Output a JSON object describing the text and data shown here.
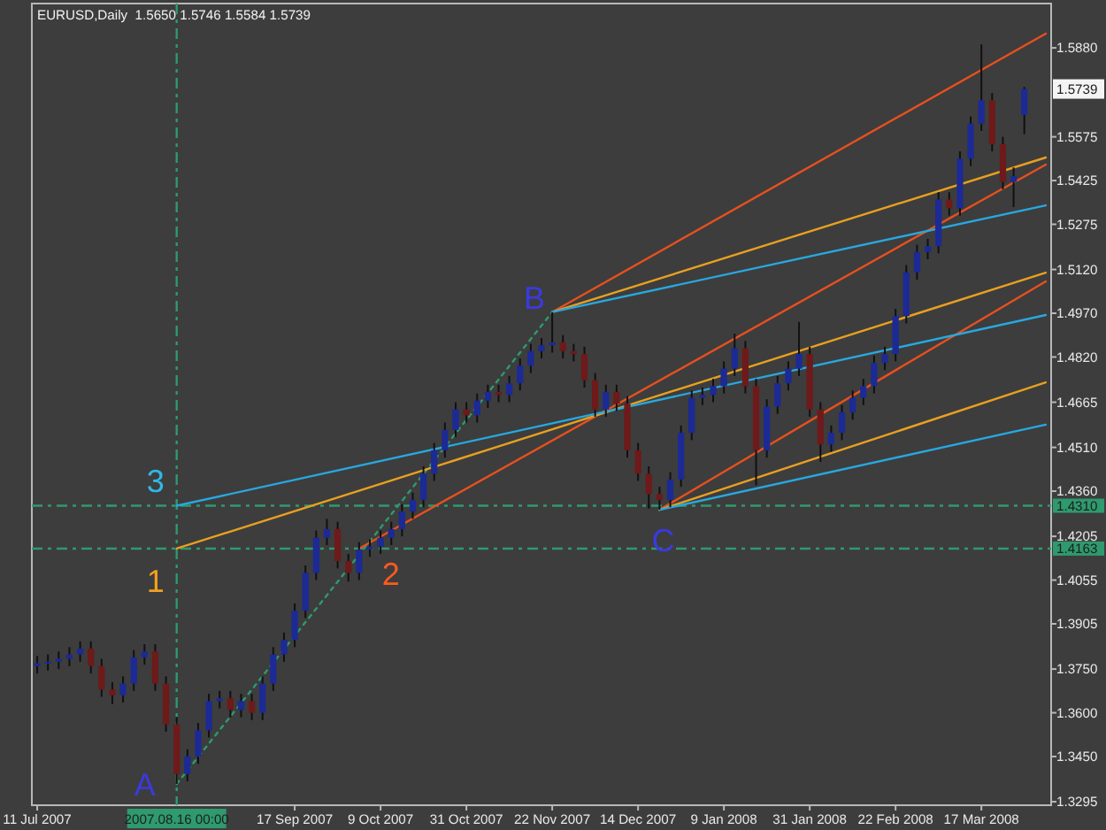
{
  "chart_data": {
    "type": "candlestick",
    "title": "EURUSD,Daily  1.5650 1.5746 1.5584 1.5739",
    "categories": [
      "11 Jul 2007",
      null,
      null,
      null,
      null,
      null,
      null,
      null,
      null,
      null,
      null,
      null,
      null,
      "2007.08.16 00:00",
      null,
      null,
      null,
      null,
      null,
      null,
      null,
      null,
      null,
      null,
      "17 Sep 2007",
      null,
      null,
      null,
      null,
      null,
      null,
      null,
      "9 Oct 2007",
      null,
      null,
      null,
      null,
      null,
      null,
      null,
      "31 Oct 2007",
      null,
      null,
      null,
      null,
      null,
      null,
      null,
      "22 Nov 2007",
      null,
      null,
      null,
      null,
      null,
      null,
      null,
      "14 Dec 2007",
      null,
      null,
      null,
      null,
      null,
      null,
      null,
      "9 Jan 2008",
      null,
      null,
      null,
      null,
      null,
      null,
      null,
      "31 Jan 2008",
      null,
      null,
      null,
      null,
      null,
      null,
      null,
      "22 Feb 2008",
      null,
      null,
      null,
      null,
      null,
      null,
      null,
      "17 Mar 2008",
      null,
      null,
      null,
      null,
      null,
      null
    ],
    "ohlc": [
      [
        1.376,
        1.3795,
        1.3735,
        1.377
      ],
      [
        1.377,
        1.38,
        1.3745,
        1.3775
      ],
      [
        1.3775,
        1.381,
        1.375,
        1.3785
      ],
      [
        1.3785,
        1.3825,
        1.376,
        1.38
      ],
      [
        1.38,
        1.3845,
        1.3775,
        1.382
      ],
      [
        1.382,
        1.3845,
        1.3735,
        1.376
      ],
      [
        1.376,
        1.3785,
        1.3655,
        1.368
      ],
      [
        1.368,
        1.3705,
        1.363,
        1.366
      ],
      [
        1.366,
        1.3725,
        1.3635,
        1.37
      ],
      [
        1.37,
        1.3815,
        1.3675,
        1.379
      ],
      [
        1.379,
        1.3835,
        1.3765,
        1.381
      ],
      [
        1.381,
        1.3835,
        1.3675,
        1.37
      ],
      [
        1.37,
        1.3725,
        1.3535,
        1.356
      ],
      [
        1.356,
        1.3585,
        1.3356,
        1.339
      ],
      [
        1.339,
        1.3475,
        1.3365,
        1.345
      ],
      [
        1.345,
        1.3565,
        1.3425,
        1.354
      ],
      [
        1.354,
        1.3665,
        1.3515,
        1.364
      ],
      [
        1.364,
        1.3675,
        1.3615,
        1.365
      ],
      [
        1.365,
        1.3675,
        1.3585,
        1.361
      ],
      [
        1.361,
        1.3665,
        1.3585,
        1.364
      ],
      [
        1.364,
        1.3665,
        1.3575,
        1.36
      ],
      [
        1.36,
        1.3725,
        1.3575,
        1.37
      ],
      [
        1.37,
        1.3825,
        1.3675,
        1.38
      ],
      [
        1.38,
        1.3875,
        1.3775,
        1.385
      ],
      [
        1.385,
        1.3975,
        1.3825,
        1.395
      ],
      [
        1.395,
        1.4105,
        1.3925,
        1.408
      ],
      [
        1.408,
        1.4225,
        1.4055,
        1.42
      ],
      [
        1.42,
        1.4265,
        1.4175,
        1.423
      ],
      [
        1.423,
        1.4255,
        1.4095,
        1.412
      ],
      [
        1.412,
        1.4145,
        1.405,
        1.408
      ],
      [
        1.408,
        1.4185,
        1.4055,
        1.416
      ],
      [
        1.416,
        1.4195,
        1.4135,
        1.417
      ],
      [
        1.417,
        1.4225,
        1.4145,
        1.42
      ],
      [
        1.42,
        1.4255,
        1.4175,
        1.423
      ],
      [
        1.423,
        1.4315,
        1.4205,
        1.429
      ],
      [
        1.429,
        1.4355,
        1.4265,
        1.433
      ],
      [
        1.433,
        1.4445,
        1.4305,
        1.442
      ],
      [
        1.442,
        1.4525,
        1.4395,
        1.45
      ],
      [
        1.45,
        1.4595,
        1.4475,
        1.457
      ],
      [
        1.457,
        1.4665,
        1.4545,
        1.464
      ],
      [
        1.464,
        1.4665,
        1.4595,
        1.462
      ],
      [
        1.462,
        1.4695,
        1.4595,
        1.467
      ],
      [
        1.467,
        1.4725,
        1.4645,
        1.47
      ],
      [
        1.47,
        1.4725,
        1.4665,
        1.469
      ],
      [
        1.469,
        1.4755,
        1.4665,
        1.473
      ],
      [
        1.473,
        1.4815,
        1.4705,
        1.479
      ],
      [
        1.479,
        1.4865,
        1.4765,
        1.484
      ],
      [
        1.484,
        1.4885,
        1.4815,
        1.486
      ],
      [
        1.486,
        1.4974,
        1.4835,
        1.487
      ],
      [
        1.487,
        1.4895,
        1.4815,
        1.484
      ],
      [
        1.484,
        1.4865,
        1.4805,
        1.483
      ],
      [
        1.483,
        1.4855,
        1.4715,
        1.474
      ],
      [
        1.474,
        1.4765,
        1.4615,
        1.464
      ],
      [
        1.464,
        1.4725,
        1.4615,
        1.47
      ],
      [
        1.47,
        1.4725,
        1.4635,
        1.466
      ],
      [
        1.466,
        1.4685,
        1.4475,
        1.45
      ],
      [
        1.45,
        1.4525,
        1.4395,
        1.442
      ],
      [
        1.442,
        1.4445,
        1.43,
        1.435
      ],
      [
        1.435,
        1.4375,
        1.4296,
        1.433
      ],
      [
        1.433,
        1.4425,
        1.4305,
        1.44
      ],
      [
        1.44,
        1.4585,
        1.4375,
        1.456
      ],
      [
        1.456,
        1.4705,
        1.4535,
        1.468
      ],
      [
        1.468,
        1.4715,
        1.4655,
        1.469
      ],
      [
        1.469,
        1.4745,
        1.4665,
        1.472
      ],
      [
        1.472,
        1.4805,
        1.4695,
        1.478
      ],
      [
        1.478,
        1.49,
        1.4755,
        1.485
      ],
      [
        1.485,
        1.4875,
        1.4695,
        1.472
      ],
      [
        1.472,
        1.4745,
        1.438,
        1.45
      ],
      [
        1.45,
        1.4675,
        1.4475,
        1.465
      ],
      [
        1.465,
        1.4755,
        1.4625,
        1.473
      ],
      [
        1.473,
        1.4805,
        1.4705,
        1.478
      ],
      [
        1.478,
        1.494,
        1.4755,
        1.483
      ],
      [
        1.483,
        1.4855,
        1.4615,
        1.464
      ],
      [
        1.464,
        1.4665,
        1.446,
        1.452
      ],
      [
        1.452,
        1.4585,
        1.4495,
        1.456
      ],
      [
        1.456,
        1.4655,
        1.4535,
        1.463
      ],
      [
        1.463,
        1.4705,
        1.4605,
        1.468
      ],
      [
        1.468,
        1.4745,
        1.4655,
        1.472
      ],
      [
        1.472,
        1.4825,
        1.4695,
        1.48
      ],
      [
        1.48,
        1.4855,
        1.4775,
        1.483
      ],
      [
        1.483,
        1.4985,
        1.4805,
        1.496
      ],
      [
        1.496,
        1.5135,
        1.4935,
        1.511
      ],
      [
        1.511,
        1.5205,
        1.5085,
        1.518
      ],
      [
        1.518,
        1.5225,
        1.5155,
        1.52
      ],
      [
        1.52,
        1.5385,
        1.5175,
        1.536
      ],
      [
        1.536,
        1.5385,
        1.5305,
        1.533
      ],
      [
        1.533,
        1.5525,
        1.5305,
        1.55
      ],
      [
        1.55,
        1.5645,
        1.5475,
        1.562
      ],
      [
        1.562,
        1.5892,
        1.5595,
        1.57
      ],
      [
        1.57,
        1.5725,
        1.5525,
        1.555
      ],
      [
        1.555,
        1.5575,
        1.5395,
        1.542
      ],
      [
        1.542,
        1.547,
        1.5334,
        1.544
      ],
      [
        1.565,
        1.5746,
        1.5584,
        1.5739
      ],
      null,
      null
    ],
    "colors": [
      "#1c2a96",
      "#1c2a96",
      "#1c2a96",
      "#1c2a96",
      "#1c2a96",
      "#6e1a1a",
      "#6e1a1a",
      "#6e1a1a",
      "#1c2a96",
      "#1c2a96",
      "#1c2a96",
      "#6e1a1a",
      "#6e1a1a",
      "#6e1a1a",
      "#1c2a96",
      "#1c2a96",
      "#1c2a96",
      "#1c2a96",
      "#6e1a1a",
      "#1c2a96",
      "#6e1a1a",
      "#1c2a96",
      "#1c2a96",
      "#1c2a96",
      "#1c2a96",
      "#1c2a96",
      "#1c2a96",
      "#1c2a96",
      "#6e1a1a",
      "#6e1a1a",
      "#1c2a96",
      "#1c2a96",
      "#1c2a96",
      "#1c2a96",
      "#1c2a96",
      "#1c2a96",
      "#1c2a96",
      "#1c2a96",
      "#1c2a96",
      "#1c2a96",
      "#6e1a1a",
      "#1c2a96",
      "#1c2a96",
      "#6e1a1a",
      "#1c2a96",
      "#1c2a96",
      "#1c2a96",
      "#1c2a96",
      "#1c2a96",
      "#6e1a1a",
      "#6e1a1a",
      "#6e1a1a",
      "#6e1a1a",
      "#1c2a96",
      "#6e1a1a",
      "#6e1a1a",
      "#6e1a1a",
      "#6e1a1a",
      "#6e1a1a",
      "#1c2a96",
      "#1c2a96",
      "#1c2a96",
      "#1c2a96",
      "#1c2a96",
      "#1c2a96",
      "#1c2a96",
      "#6e1a1a",
      "#6e1a1a",
      "#1c2a96",
      "#1c2a96",
      "#1c2a96",
      "#1c2a96",
      "#6e1a1a",
      "#6e1a1a",
      "#1c2a96",
      "#1c2a96",
      "#1c2a96",
      "#1c2a96",
      "#1c2a96",
      "#1c2a96",
      "#1c2a96",
      "#1c2a96",
      "#1c2a96",
      "#1c2a96",
      "#1c2a96",
      "#6e1a1a",
      "#1c2a96",
      "#1c2a96",
      "#1c2a96",
      "#6e1a1a",
      "#6e1a1a",
      "#1c2a96",
      "#1c2a96",
      null,
      null
    ],
    "series": [
      {
        "type": "line",
        "color": "#2e9a6e",
        "line_style": "dotted",
        "values": [
          null,
          null,
          null,
          null,
          null,
          null,
          null,
          null,
          null,
          null,
          null,
          null,
          null,
          1.3356,
          null,
          null,
          null,
          null,
          null,
          null,
          null,
          null,
          null,
          null,
          null,
          null,
          null,
          null,
          null,
          null,
          null,
          null,
          null,
          null,
          null,
          null,
          null,
          null,
          null,
          null,
          null,
          null,
          null,
          null,
          null,
          null,
          null,
          null,
          1.4974,
          null,
          null,
          null,
          null,
          null,
          null,
          null,
          null,
          null,
          null,
          null,
          null,
          null,
          null,
          null,
          null,
          null,
          null,
          null,
          null,
          null,
          null,
          null,
          null,
          null,
          null,
          null,
          null,
          null,
          null,
          null,
          null,
          null,
          null,
          null,
          null,
          null,
          null,
          null,
          null,
          null,
          null,
          null,
          null,
          null,
          null
        ]
      },
      {
        "type": "line",
        "color": "#e8501e",
        "line_style": "solid",
        "values": [
          null,
          null,
          null,
          null,
          null,
          null,
          null,
          null,
          null,
          null,
          null,
          null,
          null,
          null,
          null,
          null,
          null,
          null,
          null,
          null,
          null,
          null,
          null,
          null,
          null,
          null,
          null,
          null,
          null,
          null,
          null,
          null,
          null,
          null,
          null,
          null,
          null,
          null,
          null,
          null,
          null,
          null,
          null,
          null,
          null,
          null,
          null,
          null,
          1.4974,
          null,
          null,
          null,
          null,
          null,
          null,
          null,
          null,
          null,
          null,
          null,
          null,
          null,
          null,
          null,
          null,
          null,
          null,
          null,
          null,
          null,
          null,
          null,
          null,
          null,
          null,
          null,
          null,
          null,
          null,
          null,
          null,
          null,
          null,
          null,
          null,
          null,
          null,
          null,
          null,
          null,
          null,
          null,
          null,
          null,
          1.5929
        ]
      },
      {
        "type": "line",
        "color": "#e8501e",
        "line_style": "solid",
        "values": [
          null,
          null,
          null,
          null,
          null,
          null,
          null,
          null,
          null,
          null,
          null,
          null,
          null,
          null,
          null,
          null,
          null,
          null,
          null,
          null,
          null,
          null,
          null,
          null,
          null,
          null,
          null,
          null,
          null,
          null,
          1.4163,
          null,
          null,
          null,
          null,
          null,
          null,
          null,
          null,
          null,
          null,
          null,
          null,
          null,
          null,
          null,
          null,
          null,
          null,
          null,
          null,
          null,
          null,
          null,
          null,
          null,
          null,
          null,
          null,
          null,
          null,
          null,
          null,
          null,
          null,
          null,
          null,
          null,
          null,
          null,
          null,
          null,
          null,
          null,
          null,
          null,
          null,
          null,
          null,
          null,
          null,
          null,
          null,
          null,
          null,
          null,
          null,
          null,
          null,
          null,
          null,
          null,
          null,
          null,
          1.548
        ]
      },
      {
        "type": "line",
        "color": "#e8501e",
        "line_style": "solid",
        "values": [
          null,
          null,
          null,
          null,
          null,
          null,
          null,
          null,
          null,
          null,
          null,
          null,
          null,
          null,
          null,
          null,
          null,
          null,
          null,
          null,
          null,
          null,
          null,
          null,
          null,
          null,
          null,
          null,
          null,
          null,
          null,
          null,
          null,
          null,
          null,
          null,
          null,
          null,
          null,
          null,
          null,
          null,
          null,
          null,
          null,
          null,
          null,
          null,
          null,
          null,
          null,
          null,
          null,
          null,
          null,
          null,
          null,
          null,
          1.4296,
          null,
          null,
          null,
          null,
          null,
          null,
          null,
          null,
          null,
          null,
          null,
          null,
          null,
          null,
          null,
          null,
          null,
          null,
          null,
          null,
          null,
          null,
          null,
          null,
          null,
          null,
          null,
          null,
          null,
          null,
          null,
          null,
          null,
          null,
          null,
          1.5079
        ]
      },
      {
        "type": "line",
        "color": "#e8a020",
        "line_style": "solid",
        "values": [
          null,
          null,
          null,
          null,
          null,
          null,
          null,
          null,
          null,
          null,
          null,
          null,
          null,
          1.4163,
          null,
          null,
          null,
          null,
          null,
          null,
          null,
          null,
          null,
          null,
          null,
          null,
          null,
          null,
          null,
          null,
          null,
          null,
          null,
          null,
          null,
          null,
          null,
          null,
          null,
          null,
          null,
          null,
          null,
          null,
          null,
          null,
          null,
          null,
          null,
          null,
          null,
          null,
          null,
          null,
          null,
          null,
          null,
          null,
          null,
          null,
          null,
          null,
          null,
          null,
          null,
          null,
          null,
          null,
          null,
          null,
          null,
          null,
          null,
          null,
          null,
          null,
          null,
          null,
          null,
          null,
          null,
          null,
          null,
          null,
          null,
          null,
          null,
          null,
          null,
          null,
          null,
          null,
          null,
          null,
          1.5109
        ]
      },
      {
        "type": "line",
        "color": "#e8a020",
        "line_style": "solid",
        "values": [
          null,
          null,
          null,
          null,
          null,
          null,
          null,
          null,
          null,
          null,
          null,
          null,
          null,
          null,
          null,
          null,
          null,
          null,
          null,
          null,
          null,
          null,
          null,
          null,
          null,
          null,
          null,
          null,
          null,
          null,
          null,
          null,
          null,
          null,
          null,
          null,
          null,
          null,
          null,
          null,
          null,
          null,
          null,
          null,
          null,
          null,
          null,
          null,
          1.4974,
          null,
          null,
          null,
          null,
          null,
          null,
          null,
          null,
          null,
          null,
          null,
          null,
          null,
          null,
          null,
          null,
          null,
          null,
          null,
          null,
          null,
          null,
          null,
          null,
          null,
          null,
          null,
          null,
          null,
          null,
          null,
          null,
          null,
          null,
          null,
          null,
          null,
          null,
          null,
          null,
          null,
          null,
          null,
          null,
          null,
          1.5504
        ]
      },
      {
        "type": "line",
        "color": "#e8a020",
        "line_style": "solid",
        "values": [
          null,
          null,
          null,
          null,
          null,
          null,
          null,
          null,
          null,
          null,
          null,
          null,
          null,
          null,
          null,
          null,
          null,
          null,
          null,
          null,
          null,
          null,
          null,
          null,
          null,
          null,
          null,
          null,
          null,
          null,
          null,
          null,
          null,
          null,
          null,
          null,
          null,
          null,
          null,
          null,
          null,
          null,
          null,
          null,
          null,
          null,
          null,
          null,
          null,
          null,
          null,
          null,
          null,
          null,
          null,
          null,
          null,
          null,
          1.4296,
          null,
          null,
          null,
          null,
          null,
          null,
          null,
          null,
          null,
          null,
          null,
          null,
          null,
          null,
          null,
          null,
          null,
          null,
          null,
          null,
          null,
          null,
          null,
          null,
          null,
          null,
          null,
          null,
          null,
          null,
          null,
          null,
          null,
          null,
          null,
          1.4733
        ]
      },
      {
        "type": "line",
        "color": "#28a8e0",
        "line_style": "solid",
        "values": [
          null,
          null,
          null,
          null,
          null,
          null,
          null,
          null,
          null,
          null,
          null,
          null,
          null,
          1.431,
          null,
          null,
          null,
          null,
          null,
          null,
          null,
          null,
          null,
          null,
          null,
          null,
          null,
          null,
          null,
          null,
          null,
          null,
          null,
          null,
          null,
          null,
          null,
          null,
          null,
          null,
          null,
          null,
          null,
          null,
          null,
          null,
          null,
          null,
          null,
          null,
          null,
          null,
          null,
          null,
          null,
          null,
          null,
          null,
          null,
          null,
          null,
          null,
          null,
          null,
          null,
          null,
          null,
          null,
          null,
          null,
          null,
          null,
          null,
          null,
          null,
          null,
          null,
          null,
          null,
          null,
          null,
          null,
          null,
          null,
          null,
          null,
          null,
          null,
          null,
          null,
          null,
          null,
          null,
          null,
          1.4964
        ]
      },
      {
        "type": "line",
        "color": "#28a8e0",
        "line_style": "solid",
        "values": [
          null,
          null,
          null,
          null,
          null,
          null,
          null,
          null,
          null,
          null,
          null,
          null,
          null,
          null,
          null,
          null,
          null,
          null,
          null,
          null,
          null,
          null,
          null,
          null,
          null,
          null,
          null,
          null,
          null,
          null,
          null,
          null,
          null,
          null,
          null,
          null,
          null,
          null,
          null,
          null,
          null,
          null,
          null,
          null,
          null,
          null,
          null,
          null,
          1.4974,
          null,
          null,
          null,
          null,
          null,
          null,
          null,
          null,
          null,
          null,
          null,
          null,
          null,
          null,
          null,
          null,
          null,
          null,
          null,
          null,
          null,
          null,
          null,
          null,
          null,
          null,
          null,
          null,
          null,
          null,
          null,
          null,
          null,
          null,
          null,
          null,
          null,
          null,
          null,
          null,
          null,
          null,
          null,
          null,
          null,
          1.534
        ]
      },
      {
        "type": "line",
        "color": "#28a8e0",
        "line_style": "solid",
        "values": [
          null,
          null,
          null,
          null,
          null,
          null,
          null,
          null,
          null,
          null,
          null,
          null,
          null,
          null,
          null,
          null,
          null,
          null,
          null,
          null,
          null,
          null,
          null,
          null,
          null,
          null,
          null,
          null,
          null,
          null,
          null,
          null,
          null,
          null,
          null,
          null,
          null,
          null,
          null,
          null,
          null,
          null,
          null,
          null,
          null,
          null,
          null,
          null,
          null,
          null,
          null,
          null,
          null,
          null,
          null,
          null,
          null,
          null,
          1.4296,
          null,
          null,
          null,
          null,
          null,
          null,
          null,
          null,
          null,
          null,
          null,
          null,
          null,
          null,
          null,
          null,
          null,
          null,
          null,
          null,
          null,
          null,
          null,
          null,
          null,
          null,
          null,
          null,
          null,
          null,
          null,
          null,
          null,
          null,
          null,
          1.4588
        ]
      }
    ],
    "ylim": [
      1.3283,
      1.6032
    ],
    "yticks": [
      {
        "value": 1.588,
        "label": "1.5880"
      },
      {
        "value": 1.5575,
        "label": "1.5575"
      },
      {
        "value": 1.5425,
        "label": "1.5425"
      },
      {
        "value": 1.5275,
        "label": "1.5275"
      },
      {
        "value": 1.512,
        "label": "1.5120"
      },
      {
        "value": 1.497,
        "label": "1.4970"
      },
      {
        "value": 1.482,
        "label": "1.4820"
      },
      {
        "value": 1.4665,
        "label": "1.4665"
      },
      {
        "value": 1.451,
        "label": "1.4510"
      },
      {
        "value": 1.436,
        "label": "1.4360"
      },
      {
        "value": 1.4205,
        "label": "1.4205"
      },
      {
        "value": 1.4055,
        "label": "1.4055"
      },
      {
        "value": 1.3905,
        "label": "1.3905"
      },
      {
        "value": 1.375,
        "label": "1.3750"
      },
      {
        "value": 1.36,
        "label": "1.3600"
      },
      {
        "value": 1.345,
        "label": "1.3450"
      },
      {
        "value": 1.3295,
        "label": "1.3295"
      }
    ],
    "ref_lines": [
      {
        "axis": "x",
        "value": "2007.08.16 00:00",
        "color": "#2e9a6e",
        "line_style": "dashed"
      },
      {
        "axis": "y",
        "value": 1.431,
        "label": "1.4310",
        "color": "#2e9a6e",
        "line_style": "dashed"
      },
      {
        "axis": "y",
        "value": 1.4163,
        "label": "1.4163",
        "color": "#2e9a6e",
        "line_style": "dashed"
      }
    ],
    "annotations": [
      "A",
      "1",
      "3",
      "2",
      "B",
      "C",
      "1.5739"
    ]
  }
}
